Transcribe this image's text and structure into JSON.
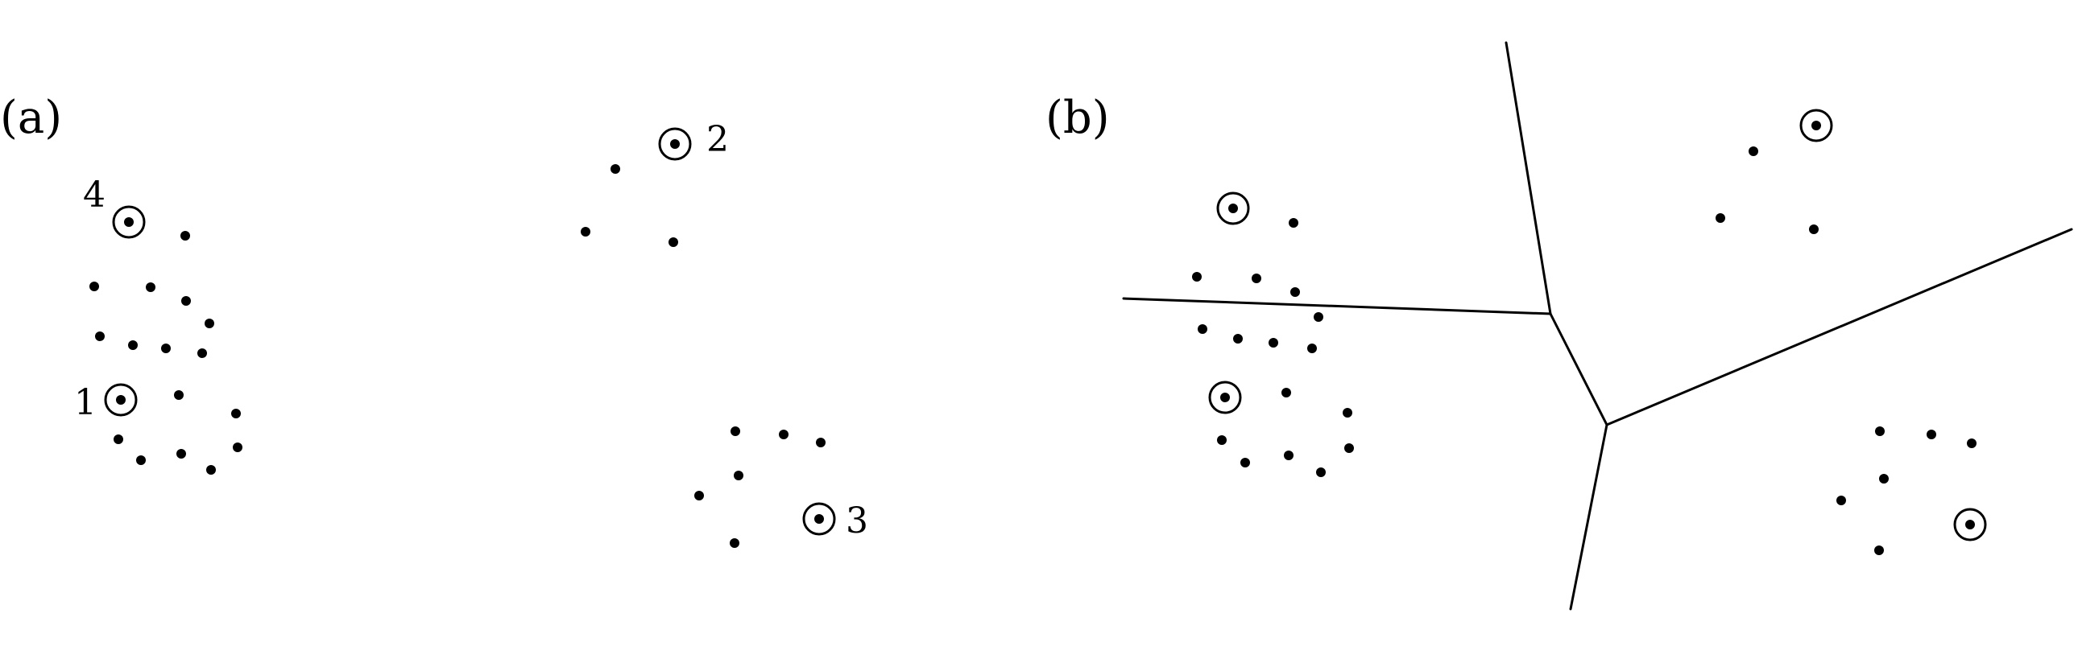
{
  "panel_a": {
    "label": "(a)",
    "seed_labels": [
      "1",
      "2",
      "3",
      "4"
    ]
  },
  "panel_b": {
    "label": "(b)"
  },
  "colors": {
    "ink": "#000000",
    "background": "#ffffff"
  }
}
